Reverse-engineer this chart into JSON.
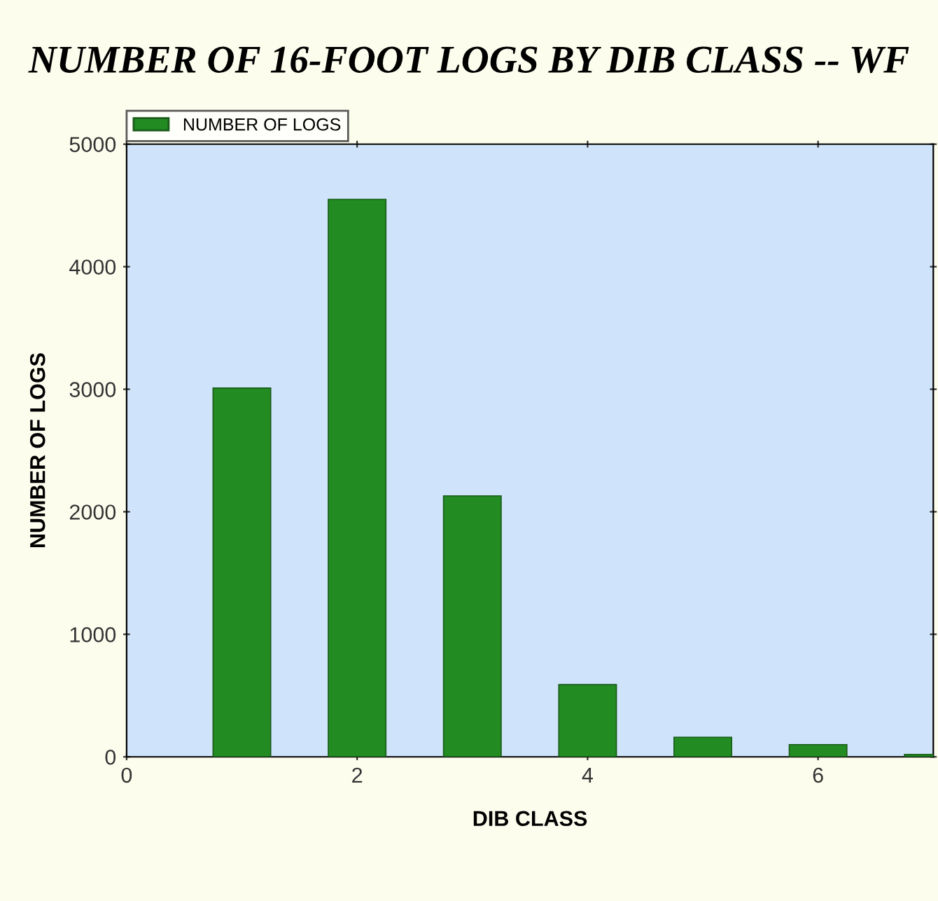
{
  "chart_data": {
    "type": "bar",
    "title": "NUMBER OF 16-FOOT LOGS BY DIB CLASS -- WF",
    "xlabel": "DIB CLASS",
    "ylabel": "NUMBER OF LOGS",
    "x": [
      1,
      2,
      3,
      4,
      5,
      6,
      7
    ],
    "series": [
      {
        "name": "NUMBER OF LOGS",
        "color": "#228b22",
        "values": [
          3010,
          4550,
          2130,
          590,
          160,
          100,
          20
        ]
      }
    ],
    "xlim": [
      0,
      7
    ],
    "xticks": [
      0,
      2,
      4,
      6
    ],
    "ylim": [
      0,
      5000
    ],
    "yticks": [
      0,
      1000,
      2000,
      3000,
      4000,
      5000
    ],
    "grid": false,
    "legend": "top left"
  }
}
